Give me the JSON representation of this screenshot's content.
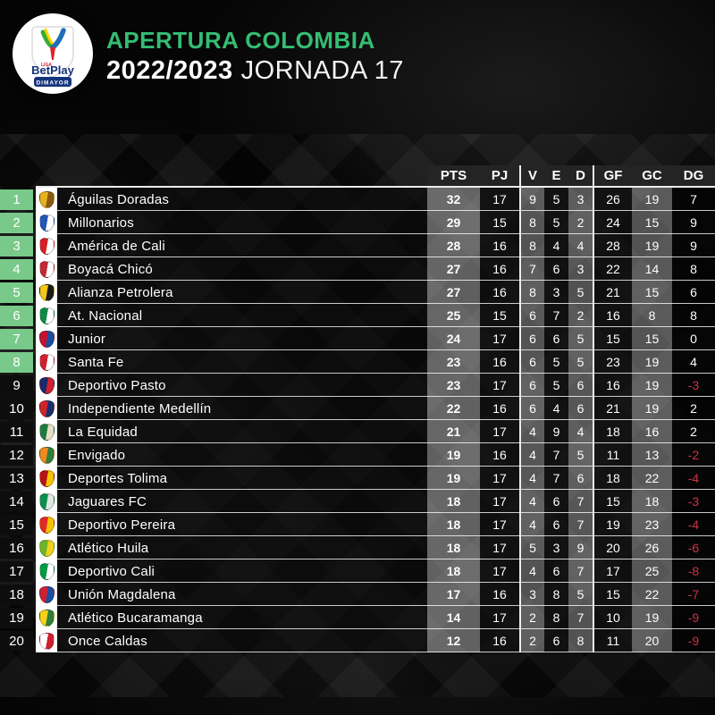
{
  "header": {
    "title": "APERTURA COLOMBIA",
    "season": "2022/2023",
    "jornada": "JORNADA 17",
    "accent_green": "#35bd72",
    "logo": {
      "liga": "LIGA",
      "brand": "BetPlay",
      "banner": "DIMAYOR",
      "banner_blue": "#16347c"
    }
  },
  "chart_data": {
    "type": "table",
    "title": "APERTURA COLOMBIA 2022/2023 JORNADA 17",
    "columns": [
      "PTS",
      "PJ",
      "V",
      "E",
      "D",
      "GF",
      "GC",
      "DG"
    ],
    "qualified_positions": 8,
    "qualified_color": "#79c98a",
    "negative_color": "#d03245",
    "rows": [
      {
        "pos": 1,
        "team": "Águilas Doradas",
        "pts": 32,
        "pj": 17,
        "v": 9,
        "e": 5,
        "d": 3,
        "gf": 26,
        "gc": 19,
        "dg": 7,
        "badge": [
          "#e6b31e",
          "#8a5a13"
        ]
      },
      {
        "pos": 2,
        "team": "Millonarios",
        "pts": 29,
        "pj": 15,
        "v": 8,
        "e": 5,
        "d": 2,
        "gf": 24,
        "gc": 15,
        "dg": 9,
        "badge": [
          "#2257b5",
          "#ffffff"
        ]
      },
      {
        "pos": 3,
        "team": "América de Cali",
        "pts": 28,
        "pj": 16,
        "v": 8,
        "e": 4,
        "d": 4,
        "gf": 28,
        "gc": 19,
        "dg": 9,
        "badge": [
          "#d42027",
          "#ffffff"
        ]
      },
      {
        "pos": 4,
        "team": "Boyacá Chicó",
        "pts": 27,
        "pj": 16,
        "v": 7,
        "e": 6,
        "d": 3,
        "gf": 22,
        "gc": 14,
        "dg": 8,
        "badge": [
          "#c22b33",
          "#ffffff"
        ]
      },
      {
        "pos": 5,
        "team": "Alianza Petrolera",
        "pts": 27,
        "pj": 16,
        "v": 8,
        "e": 3,
        "d": 5,
        "gf": 21,
        "gc": 15,
        "dg": 6,
        "badge": [
          "#f2c718",
          "#1c1c1c"
        ]
      },
      {
        "pos": 6,
        "team": "At. Nacional",
        "pts": 25,
        "pj": 15,
        "v": 6,
        "e": 7,
        "d": 2,
        "gf": 16,
        "gc": 8,
        "dg": 8,
        "badge": [
          "#0f8a44",
          "#ffffff"
        ]
      },
      {
        "pos": 7,
        "team": "Junior",
        "pts": 24,
        "pj": 17,
        "v": 6,
        "e": 6,
        "d": 5,
        "gf": 15,
        "gc": 15,
        "dg": 0,
        "badge": [
          "#c8102e",
          "#1b4fa0"
        ]
      },
      {
        "pos": 8,
        "team": "Santa Fe",
        "pts": 23,
        "pj": 16,
        "v": 6,
        "e": 5,
        "d": 5,
        "gf": 23,
        "gc": 19,
        "dg": 4,
        "badge": [
          "#d02030",
          "#ffffff"
        ]
      },
      {
        "pos": 9,
        "team": "Deportivo Pasto",
        "pts": 23,
        "pj": 17,
        "v": 6,
        "e": 5,
        "d": 6,
        "gf": 16,
        "gc": 19,
        "dg": -3,
        "badge": [
          "#1b2a6b",
          "#d02030"
        ]
      },
      {
        "pos": 10,
        "team": "Independiente Medellín",
        "pts": 22,
        "pj": 16,
        "v": 6,
        "e": 4,
        "d": 6,
        "gf": 21,
        "gc": 19,
        "dg": 2,
        "badge": [
          "#d3232a",
          "#19306b"
        ]
      },
      {
        "pos": 11,
        "team": "La Equidad",
        "pts": 21,
        "pj": 17,
        "v": 4,
        "e": 9,
        "d": 4,
        "gf": 18,
        "gc": 16,
        "dg": 2,
        "badge": [
          "#1f7a3d",
          "#e5dfc6"
        ]
      },
      {
        "pos": 12,
        "team": "Envigado",
        "pts": 19,
        "pj": 16,
        "v": 4,
        "e": 7,
        "d": 5,
        "gf": 11,
        "gc": 13,
        "dg": -2,
        "badge": [
          "#f08a1e",
          "#2f7f3a"
        ]
      },
      {
        "pos": 13,
        "team": "Deportes Tolima",
        "pts": 19,
        "pj": 17,
        "v": 4,
        "e": 7,
        "d": 6,
        "gf": 18,
        "gc": 22,
        "dg": -4,
        "badge": [
          "#b5121b",
          "#f5c400"
        ]
      },
      {
        "pos": 14,
        "team": "Jaguares FC",
        "pts": 18,
        "pj": 17,
        "v": 4,
        "e": 6,
        "d": 7,
        "gf": 15,
        "gc": 18,
        "dg": -3,
        "badge": [
          "#0c8f4d",
          "#dfe7e2"
        ]
      },
      {
        "pos": 15,
        "team": "Deportivo Pereira",
        "pts": 18,
        "pj": 17,
        "v": 4,
        "e": 6,
        "d": 7,
        "gf": 19,
        "gc": 23,
        "dg": -4,
        "badge": [
          "#e02a2a",
          "#f5c400"
        ]
      },
      {
        "pos": 16,
        "team": "Atlético Huila",
        "pts": 18,
        "pj": 17,
        "v": 5,
        "e": 3,
        "d": 9,
        "gf": 20,
        "gc": 26,
        "dg": -6,
        "badge": [
          "#6ab52a",
          "#f2d11d"
        ]
      },
      {
        "pos": 17,
        "team": "Deportivo Cali",
        "pts": 18,
        "pj": 17,
        "v": 4,
        "e": 6,
        "d": 7,
        "gf": 17,
        "gc": 25,
        "dg": -8,
        "badge": [
          "#009a44",
          "#ffffff"
        ]
      },
      {
        "pos": 18,
        "team": "Unión Magdalena",
        "pts": 17,
        "pj": 16,
        "v": 3,
        "e": 8,
        "d": 5,
        "gf": 15,
        "gc": 22,
        "dg": -7,
        "badge": [
          "#d02030",
          "#1b4fa0"
        ]
      },
      {
        "pos": 19,
        "team": "Atlético Bucaramanga",
        "pts": 14,
        "pj": 17,
        "v": 2,
        "e": 8,
        "d": 7,
        "gf": 10,
        "gc": 19,
        "dg": -9,
        "badge": [
          "#f7d117",
          "#2f7f3a"
        ]
      },
      {
        "pos": 20,
        "team": "Once Caldas",
        "pts": 12,
        "pj": 16,
        "v": 2,
        "e": 6,
        "d": 8,
        "gf": 11,
        "gc": 20,
        "dg": -9,
        "badge": [
          "#ffffff",
          "#d02030"
        ]
      }
    ]
  }
}
